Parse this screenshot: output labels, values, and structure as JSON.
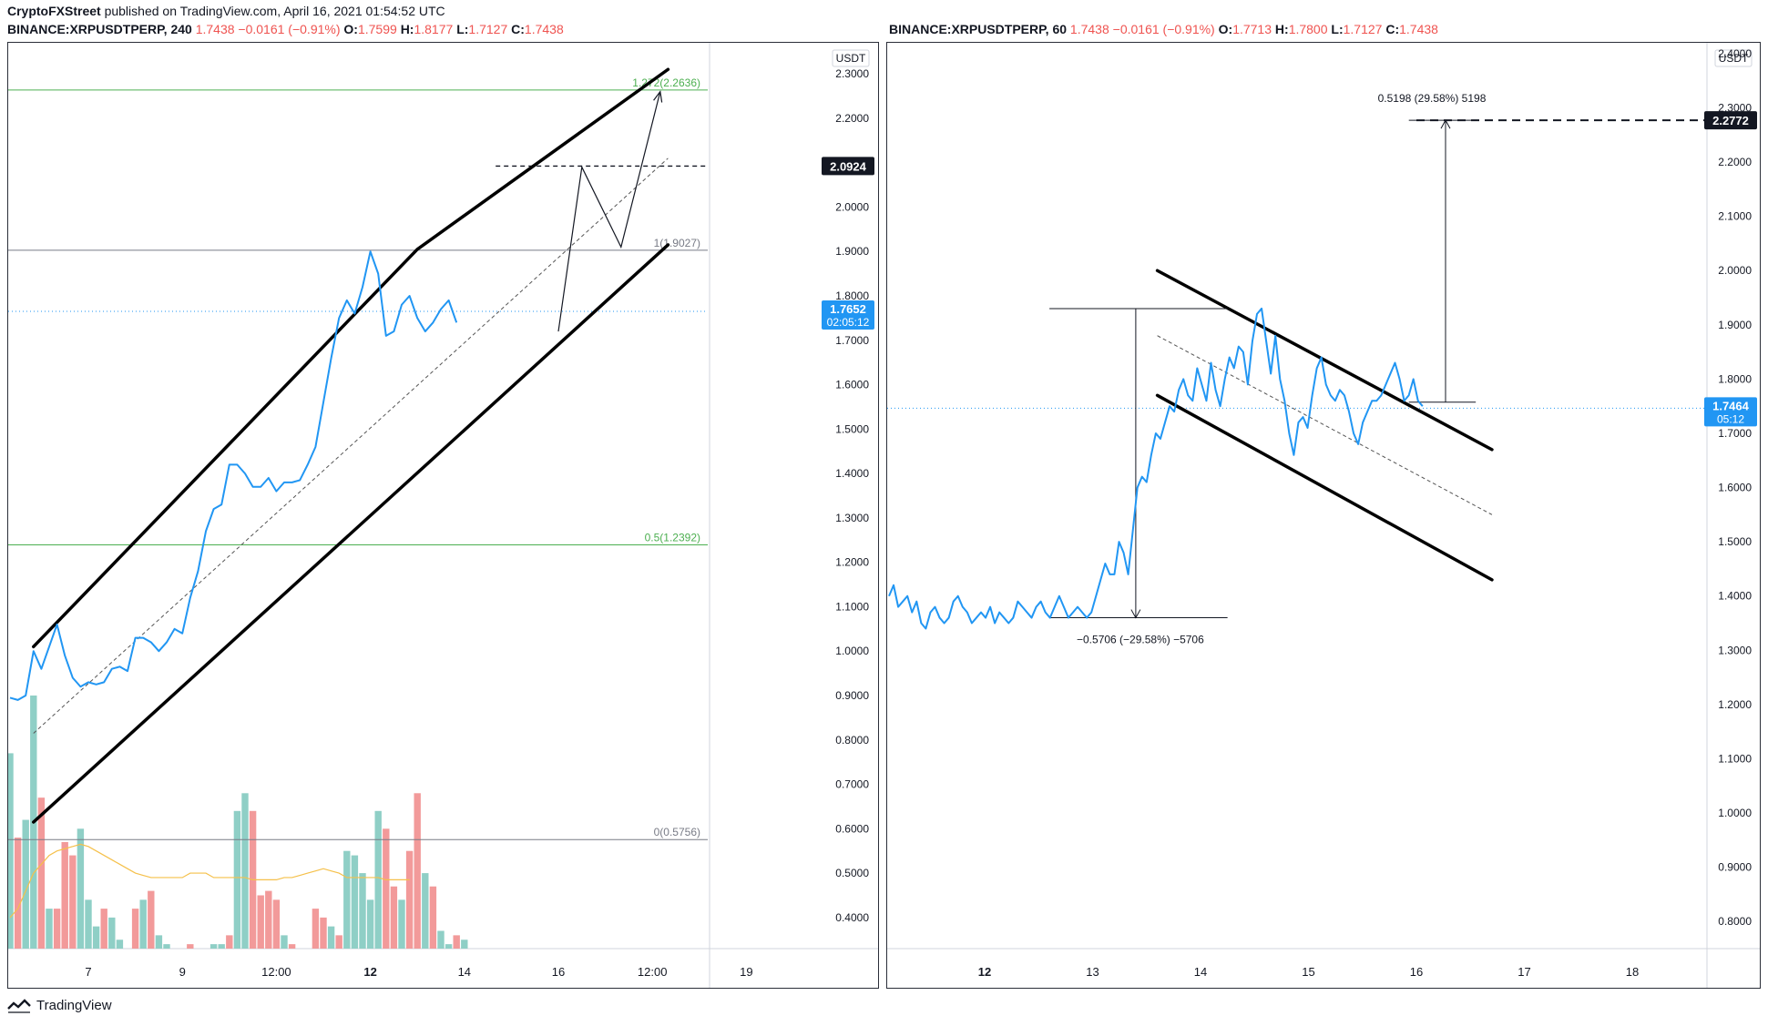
{
  "header": {
    "publisher": "CryptoFXStreet",
    "published_text": "published on TradingView.com, April 16, 2021 01:54:52 UTC"
  },
  "branding": {
    "logo_text": "TradingView",
    "logo_icon": "tradingview-logo-icon"
  },
  "colors": {
    "price_line": "#2196f3",
    "volume_up": "#8fcfc6",
    "volume_down": "#f29a9a",
    "volume_ma": "#f5c04a",
    "fib_green": "#4caf50",
    "fib_gray": "#787b86",
    "channel": "#000000"
  },
  "chart_data": [
    {
      "type": "line",
      "symbol": "BINANCE:XRPUSDTPERP",
      "interval": "240",
      "ohlc_header": {
        "last": "1.7438",
        "change": "−0.0161 (−0.91%)",
        "o": "1.7599",
        "h": "1.8177",
        "l": "1.7127",
        "c": "1.7438"
      },
      "currency_label": "USDT",
      "y_ticks": [
        "2.3000",
        "2.2000",
        "2.1000",
        "2.0000",
        "1.9000",
        "1.8000",
        "1.7000",
        "1.6000",
        "1.5000",
        "1.4000",
        "1.3000",
        "1.2000",
        "1.1000",
        "1.0000",
        "0.9000",
        "0.8000",
        "0.7000",
        "0.6000",
        "0.5000",
        "0.4000"
      ],
      "ylim": [
        0.33,
        2.37
      ],
      "x_ticks": [
        "7",
        "9",
        "12:00",
        "12",
        "14",
        "16",
        "12:00",
        "19"
      ],
      "x_tick_index": [
        10,
        22,
        34,
        46,
        58,
        70,
        82,
        94
      ],
      "price_series": [
        0.895,
        0.89,
        0.9,
        1.0,
        0.96,
        1.01,
        1.06,
        0.99,
        0.94,
        0.92,
        0.93,
        0.925,
        0.93,
        0.96,
        0.965,
        0.955,
        1.03,
        1.03,
        1.02,
        1.0,
        1.02,
        1.05,
        1.04,
        1.12,
        1.18,
        1.27,
        1.32,
        1.33,
        1.42,
        1.42,
        1.4,
        1.37,
        1.37,
        1.39,
        1.36,
        1.38,
        1.38,
        1.385,
        1.42,
        1.46,
        1.56,
        1.66,
        1.75,
        1.79,
        1.76,
        1.82,
        1.9,
        1.85,
        1.71,
        1.72,
        1.78,
        1.8,
        1.75,
        1.72,
        1.74,
        1.77,
        1.79,
        1.74
      ],
      "volume_ma": [
        0.4,
        0.42,
        0.46,
        0.5,
        0.52,
        0.54,
        0.55,
        0.555,
        0.56,
        0.565,
        0.56,
        0.55,
        0.54,
        0.53,
        0.52,
        0.51,
        0.5,
        0.495,
        0.49,
        0.49,
        0.49,
        0.49,
        0.49,
        0.5,
        0.5,
        0.5,
        0.49,
        0.49,
        0.49,
        0.49,
        0.49,
        0.485,
        0.485,
        0.485,
        0.485,
        0.49,
        0.49,
        0.495,
        0.5,
        0.505,
        0.51,
        0.505,
        0.5,
        0.49,
        0.49,
        0.49,
        0.49,
        0.49,
        0.485,
        0.485,
        0.485,
        0.485
      ],
      "volume": [
        {
          "v": 0.75,
          "up": true
        },
        {
          "v": 0.56,
          "up": false
        },
        {
          "v": 0.6,
          "up": true
        },
        {
          "v": 0.88,
          "up": true
        },
        {
          "v": 0.65,
          "up": false
        },
        {
          "v": 0.4,
          "up": true
        },
        {
          "v": 0.4,
          "up": false
        },
        {
          "v": 0.55,
          "up": false
        },
        {
          "v": 0.52,
          "up": false
        },
        {
          "v": 0.58,
          "up": true
        },
        {
          "v": 0.42,
          "up": true
        },
        {
          "v": 0.36,
          "up": true
        },
        {
          "v": 0.4,
          "up": false
        },
        {
          "v": 0.38,
          "up": true
        },
        {
          "v": 0.33,
          "up": true
        },
        {
          "v": 0.3,
          "up": true
        },
        {
          "v": 0.4,
          "up": false
        },
        {
          "v": 0.42,
          "up": true
        },
        {
          "v": 0.44,
          "up": false
        },
        {
          "v": 0.34,
          "up": true
        },
        {
          "v": 0.32,
          "up": true
        },
        {
          "v": 0.3,
          "up": true
        },
        {
          "v": 0.3,
          "up": false
        },
        {
          "v": 0.32,
          "up": false
        },
        {
          "v": 0.3,
          "up": false
        },
        {
          "v": 0.3,
          "up": true
        },
        {
          "v": 0.32,
          "up": true
        },
        {
          "v": 0.32,
          "up": true
        },
        {
          "v": 0.34,
          "up": false
        },
        {
          "v": 0.62,
          "up": true
        },
        {
          "v": 0.66,
          "up": true
        },
        {
          "v": 0.62,
          "up": false
        },
        {
          "v": 0.43,
          "up": false
        },
        {
          "v": 0.44,
          "up": false
        },
        {
          "v": 0.42,
          "up": false
        },
        {
          "v": 0.34,
          "up": true
        },
        {
          "v": 0.32,
          "up": false
        },
        {
          "v": 0.3,
          "up": true
        },
        {
          "v": 0.31,
          "up": true
        },
        {
          "v": 0.4,
          "up": false
        },
        {
          "v": 0.38,
          "up": false
        },
        {
          "v": 0.36,
          "up": true
        },
        {
          "v": 0.34,
          "up": false
        },
        {
          "v": 0.53,
          "up": true
        },
        {
          "v": 0.52,
          "up": true
        },
        {
          "v": 0.48,
          "up": true
        },
        {
          "v": 0.42,
          "up": true
        },
        {
          "v": 0.62,
          "up": true
        },
        {
          "v": 0.58,
          "up": false
        },
        {
          "v": 0.45,
          "up": false
        },
        {
          "v": 0.42,
          "up": true
        },
        {
          "v": 0.53,
          "up": false
        },
        {
          "v": 0.66,
          "up": false
        },
        {
          "v": 0.48,
          "up": true
        },
        {
          "v": 0.45,
          "up": false
        },
        {
          "v": 0.35,
          "up": true
        },
        {
          "v": 0.32,
          "up": true
        },
        {
          "v": 0.34,
          "up": false
        },
        {
          "v": 0.33,
          "up": true
        },
        {
          "v": 0.31,
          "up": true
        },
        {
          "v": 0.3,
          "up": true
        },
        {
          "v": 0.3,
          "up": true
        },
        {
          "v": 0.23,
          "up": false
        }
      ],
      "fib_levels": [
        {
          "label": "1.272(2.2636)",
          "value": 2.2636,
          "color": "green"
        },
        {
          "label": "1(1.9027)",
          "value": 1.9027,
          "color": "gray"
        },
        {
          "label": "0.5(1.2392)",
          "value": 1.2392,
          "color": "green"
        },
        {
          "label": "0(0.5756)",
          "value": 0.5756,
          "color": "gray"
        }
      ],
      "channel": {
        "upper": [
          {
            "i": 3,
            "y": 1.01
          },
          {
            "i": 52,
            "y": 1.905
          },
          {
            "i": 84,
            "y": 2.31
          }
        ],
        "lower": [
          {
            "i": 3,
            "y": 0.615
          },
          {
            "i": 84,
            "y": 1.915
          }
        ],
        "mid": [
          {
            "i": 3,
            "y": 0.815
          },
          {
            "i": 84,
            "y": 2.11
          }
        ]
      },
      "projection_path": [
        {
          "i": 70,
          "y": 1.72
        },
        {
          "i": 73,
          "y": 2.09
        },
        {
          "i": 78,
          "y": 1.91
        },
        {
          "i": 83,
          "y": 2.26
        }
      ],
      "target_level": {
        "value": 2.0924,
        "label": "2.0924",
        "from_i": 62
      },
      "current_price": {
        "value": 1.7652,
        "label": "1.7652",
        "timer": "02:05:12"
      }
    },
    {
      "type": "line",
      "symbol": "BINANCE:XRPUSDTPERP",
      "interval": "60",
      "ohlc_header": {
        "last": "1.7438",
        "change": "−0.0161 (−0.91%)",
        "o": "1.7713",
        "h": "1.7800",
        "l": "1.7127",
        "c": "1.7438"
      },
      "currency_label": "USDT",
      "y_ticks": [
        "2.4000",
        "2.3000",
        "2.2000",
        "2.1000",
        "2.0000",
        "1.9000",
        "1.8000",
        "1.7000",
        "1.6000",
        "1.5000",
        "1.4000",
        "1.3000",
        "1.2000",
        "1.1000",
        "1.0000",
        "0.9000",
        "0.8000"
      ],
      "ylim": [
        0.75,
        2.42
      ],
      "x_ticks": [
        "12",
        "13",
        "14",
        "15",
        "16",
        "17",
        "18"
      ],
      "x_tick_day": [
        1,
        2,
        3,
        4,
        5,
        6,
        7
      ],
      "price_series": [
        1.4,
        1.42,
        1.38,
        1.39,
        1.4,
        1.37,
        1.39,
        1.35,
        1.34,
        1.37,
        1.38,
        1.36,
        1.35,
        1.36,
        1.39,
        1.4,
        1.38,
        1.37,
        1.35,
        1.36,
        1.37,
        1.36,
        1.38,
        1.35,
        1.37,
        1.36,
        1.35,
        1.36,
        1.39,
        1.38,
        1.37,
        1.36,
        1.38,
        1.39,
        1.37,
        1.36,
        1.38,
        1.4,
        1.38,
        1.36,
        1.37,
        1.38,
        1.37,
        1.36,
        1.37,
        1.4,
        1.43,
        1.46,
        1.44,
        1.44,
        1.5,
        1.48,
        1.44,
        1.52,
        1.6,
        1.62,
        1.61,
        1.66,
        1.7,
        1.69,
        1.72,
        1.75,
        1.74,
        1.78,
        1.8,
        1.77,
        1.76,
        1.82,
        1.79,
        1.76,
        1.83,
        1.78,
        1.75,
        1.8,
        1.84,
        1.82,
        1.86,
        1.85,
        1.79,
        1.87,
        1.92,
        1.93,
        1.87,
        1.81,
        1.88,
        1.8,
        1.76,
        1.7,
        1.66,
        1.72,
        1.73,
        1.71,
        1.77,
        1.82,
        1.84,
        1.79,
        1.77,
        1.76,
        1.78,
        1.77,
        1.74,
        1.7,
        1.68,
        1.72,
        1.74,
        1.76,
        1.76,
        1.77,
        1.79,
        1.81,
        1.83,
        1.8,
        1.76,
        1.77,
        1.8,
        1.76,
        1.75
      ],
      "channel": {
        "upper": [
          {
            "d": 2.6,
            "y": 2.0
          },
          {
            "d": 5.7,
            "y": 1.67
          }
        ],
        "lower": [
          {
            "d": 2.6,
            "y": 1.77
          },
          {
            "d": 5.7,
            "y": 1.43
          }
        ],
        "mid": [
          {
            "d": 2.6,
            "y": 1.88
          },
          {
            "d": 5.7,
            "y": 1.55
          }
        ]
      },
      "measure_down": {
        "label": "−0.5706 (−29.58%) −5706",
        "top": 1.93,
        "bottom": 1.36,
        "top_from_d": 1.6,
        "bottom_from_d": 1.6,
        "top_to_d": 3.25,
        "bottom_to_d": 3.25,
        "arrow_d": 2.4
      },
      "measure_up": {
        "label": "0.5198 (29.58%) 5198",
        "top": 2.2772,
        "bottom": 1.7574,
        "from_d": 4.93,
        "to_d": 5.55,
        "arrow_d": 5.27
      },
      "target_level": {
        "value": 2.2772,
        "label": "2.2772",
        "from_d": 5.0
      },
      "current_price": {
        "value": 1.7464,
        "label": "1.7464",
        "timer": "05:12"
      }
    }
  ]
}
